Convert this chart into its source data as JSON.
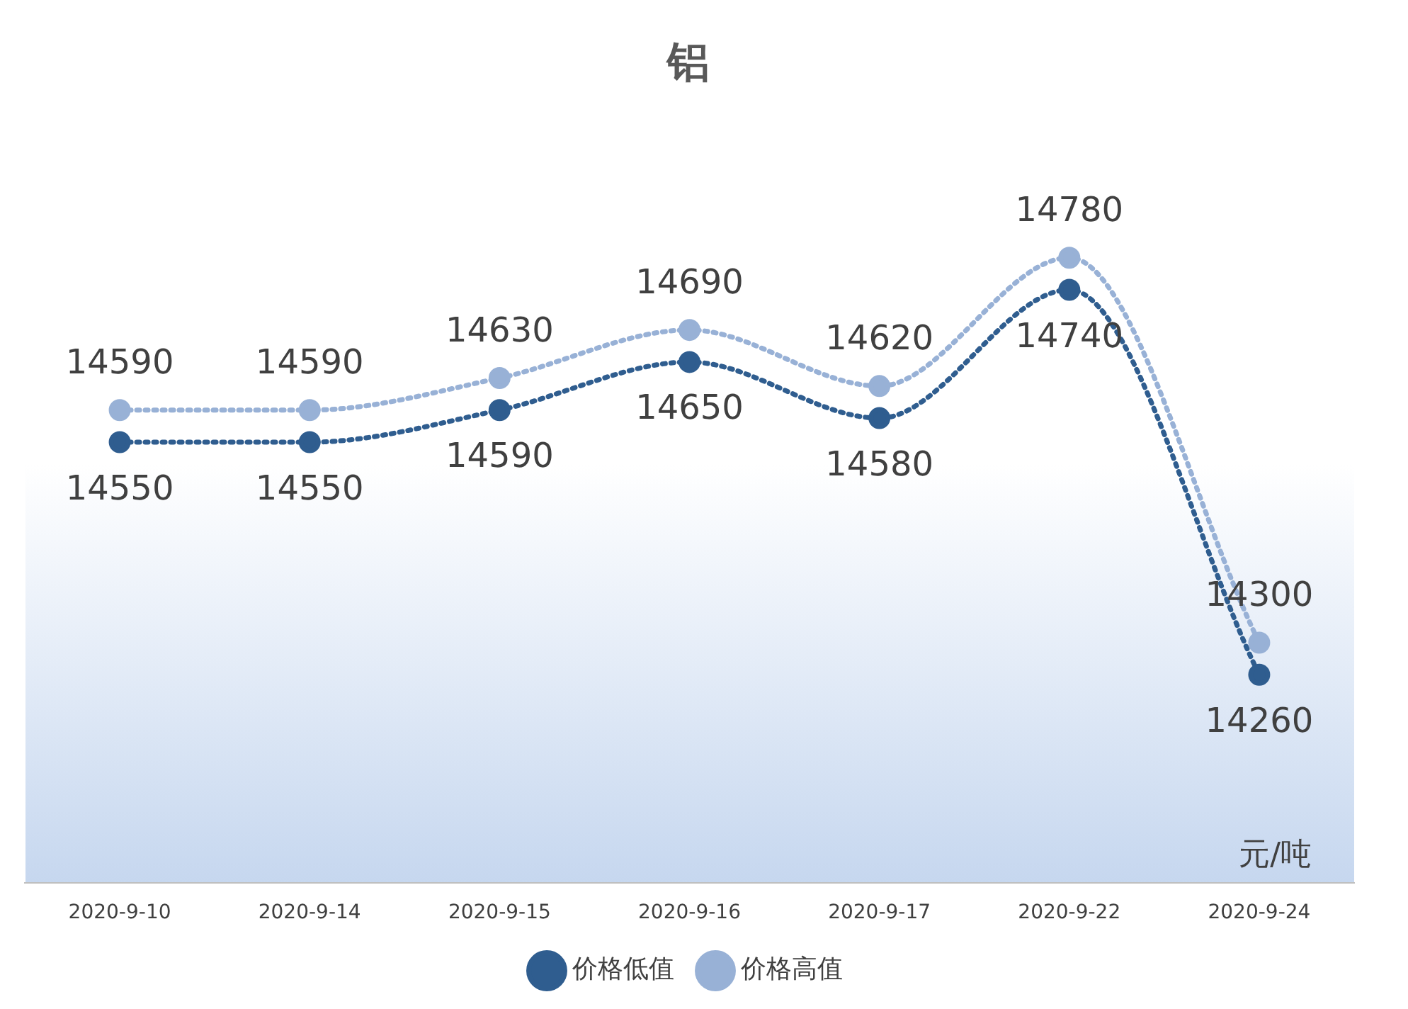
{
  "chart_data": {
    "type": "line",
    "title": "铝",
    "categories": [
      "2020-9-10",
      "2020-9-14",
      "2020-9-15",
      "2020-9-16",
      "2020-9-17",
      "2020-9-22",
      "2020-9-24"
    ],
    "series": [
      {
        "name": "价格低值",
        "color": "#2f5d8f",
        "values": [
          14550,
          14550,
          14590,
          14650,
          14580,
          14740,
          14260
        ]
      },
      {
        "name": "价格高值",
        "color": "#98b1d6",
        "values": [
          14590,
          14590,
          14630,
          14690,
          14620,
          14780,
          14300
        ]
      }
    ],
    "ylim": [
      14000,
      14900
    ],
    "tick_labels": "x",
    "data_labels": true,
    "legend": "bottom",
    "marker": "circle",
    "line_style": "dotted",
    "annotations": [
      "元/吨"
    ]
  }
}
